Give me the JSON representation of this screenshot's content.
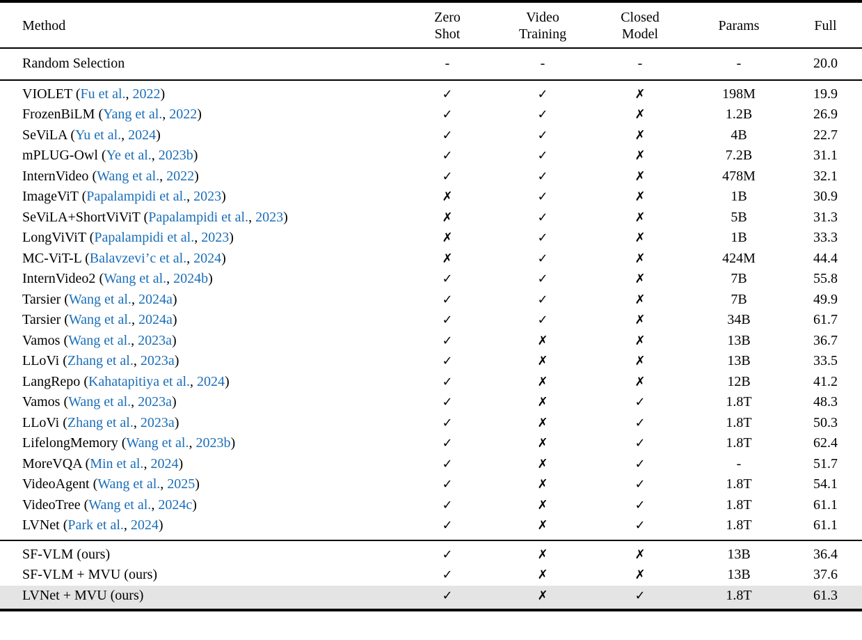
{
  "colors": {
    "link_blue": "#1a6eb8",
    "text_black": "#000000",
    "highlight_gray": "#e4e4e4"
  },
  "table": {
    "marks": {
      "yes": "✓",
      "no": "✗",
      "dash": "-"
    },
    "header": {
      "method": "Method",
      "columns": [
        {
          "line1": "Zero",
          "line2": "Shot"
        },
        {
          "line1": "Video",
          "line2": "Training"
        },
        {
          "line1": "Closed",
          "line2": "Model"
        },
        {
          "line1": "Params",
          "line2": ""
        },
        {
          "line1": "Full",
          "line2": ""
        }
      ]
    },
    "baseline_row": {
      "method": "Random Selection",
      "zero_shot": "-",
      "video_training": "-",
      "closed_model": "-",
      "params": "-",
      "full": "20.0"
    },
    "rows": [
      {
        "method": "VIOLET",
        "cite_author": "Fu et al.",
        "cite_year": "2022",
        "zero_shot": "yes",
        "video_training": "yes",
        "closed_model": "no",
        "params": "198M",
        "full": "19.9"
      },
      {
        "method": "FrozenBiLM",
        "cite_author": "Yang et al.",
        "cite_year": "2022",
        "zero_shot": "yes",
        "video_training": "yes",
        "closed_model": "no",
        "params": "1.2B",
        "full": "26.9"
      },
      {
        "method": "SeViLA",
        "cite_author": "Yu et al.",
        "cite_year": "2024",
        "zero_shot": "yes",
        "video_training": "yes",
        "closed_model": "no",
        "params": "4B",
        "full": "22.7"
      },
      {
        "method": "mPLUG-Owl",
        "cite_author": "Ye et al.",
        "cite_year": "2023b",
        "zero_shot": "yes",
        "video_training": "yes",
        "closed_model": "no",
        "params": "7.2B",
        "full": "31.1"
      },
      {
        "method": "InternVideo",
        "cite_author": "Wang et al.",
        "cite_year": "2022",
        "zero_shot": "yes",
        "video_training": "yes",
        "closed_model": "no",
        "params": "478M",
        "full": "32.1"
      },
      {
        "method": "ImageViT",
        "cite_author": "Papalampidi et al.",
        "cite_year": "2023",
        "zero_shot": "no",
        "video_training": "yes",
        "closed_model": "no",
        "params": "1B",
        "full": "30.9"
      },
      {
        "method": "SeViLA+ShortViViT",
        "cite_author": "Papalampidi et al.",
        "cite_year": "2023",
        "zero_shot": "no",
        "video_training": "yes",
        "closed_model": "no",
        "params": "5B",
        "full": "31.3"
      },
      {
        "method": "LongViViT",
        "cite_author": "Papalampidi et al.",
        "cite_year": "2023",
        "zero_shot": "no",
        "video_training": "yes",
        "closed_model": "no",
        "params": "1B",
        "full": "33.3"
      },
      {
        "method": "MC-ViT-L",
        "cite_author": "Balavzevi’c et al.",
        "cite_year": "2024",
        "zero_shot": "no",
        "video_training": "yes",
        "closed_model": "no",
        "params": "424M",
        "full": "44.4"
      },
      {
        "method": "InternVideo2",
        "cite_author": "Wang et al.",
        "cite_year": "2024b",
        "zero_shot": "yes",
        "video_training": "yes",
        "closed_model": "no",
        "params": "7B",
        "full": "55.8"
      },
      {
        "method": "Tarsier",
        "cite_author": "Wang et al.",
        "cite_year": "2024a",
        "zero_shot": "yes",
        "video_training": "yes",
        "closed_model": "no",
        "params": "7B",
        "full": "49.9"
      },
      {
        "method": "Tarsier",
        "cite_author": "Wang et al.",
        "cite_year": "2024a",
        "zero_shot": "yes",
        "video_training": "yes",
        "closed_model": "no",
        "params": "34B",
        "full": "61.7"
      },
      {
        "method": "Vamos",
        "cite_author": "Wang et al.",
        "cite_year": "2023a",
        "zero_shot": "yes",
        "video_training": "no",
        "closed_model": "no",
        "params": "13B",
        "full": "36.7"
      },
      {
        "method": "LLoVi",
        "cite_author": "Zhang et al.",
        "cite_year": "2023a",
        "zero_shot": "yes",
        "video_training": "no",
        "closed_model": "no",
        "params": "13B",
        "full": "33.5"
      },
      {
        "method": "LangRepo",
        "cite_author": "Kahatapitiya et al.",
        "cite_year": "2024",
        "zero_shot": "yes",
        "video_training": "no",
        "closed_model": "no",
        "params": "12B",
        "full": "41.2"
      },
      {
        "method": "Vamos",
        "cite_author": "Wang et al.",
        "cite_year": "2023a",
        "zero_shot": "yes",
        "video_training": "no",
        "closed_model": "yes",
        "params": "1.8T",
        "full": "48.3"
      },
      {
        "method": "LLoVi",
        "cite_author": "Zhang et al.",
        "cite_year": "2023a",
        "zero_shot": "yes",
        "video_training": "no",
        "closed_model": "yes",
        "params": "1.8T",
        "full": "50.3"
      },
      {
        "method": "LifelongMemory",
        "cite_author": "Wang et al.",
        "cite_year": "2023b",
        "zero_shot": "yes",
        "video_training": "no",
        "closed_model": "yes",
        "params": "1.8T",
        "full": "62.4"
      },
      {
        "method": "MoreVQA",
        "cite_author": "Min et al.",
        "cite_year": "2024",
        "zero_shot": "yes",
        "video_training": "no",
        "closed_model": "yes",
        "params": "-",
        "full": "51.7"
      },
      {
        "method": "VideoAgent",
        "cite_author": "Wang et al.",
        "cite_year": "2025",
        "zero_shot": "yes",
        "video_training": "no",
        "closed_model": "yes",
        "params": "1.8T",
        "full": "54.1"
      },
      {
        "method": "VideoTree",
        "cite_author": "Wang et al.",
        "cite_year": "2024c",
        "zero_shot": "yes",
        "video_training": "no",
        "closed_model": "yes",
        "params": "1.8T",
        "full": "61.1"
      },
      {
        "method": "LVNet",
        "cite_author": "Park et al.",
        "cite_year": "2024",
        "zero_shot": "yes",
        "video_training": "no",
        "closed_model": "yes",
        "params": "1.8T",
        "full": "61.1"
      }
    ],
    "ours_rows": [
      {
        "method": "SF-VLM (ours)",
        "zero_shot": "yes",
        "video_training": "no",
        "closed_model": "no",
        "params": "13B",
        "full": "36.4",
        "highlight": false
      },
      {
        "method": "SF-VLM + MVU (ours)",
        "zero_shot": "yes",
        "video_training": "no",
        "closed_model": "no",
        "params": "13B",
        "full": "37.6",
        "highlight": false
      },
      {
        "method": "LVNet + MVU (ours)",
        "zero_shot": "yes",
        "video_training": "no",
        "closed_model": "yes",
        "params": "1.8T",
        "full": "61.3",
        "highlight": true
      }
    ]
  }
}
